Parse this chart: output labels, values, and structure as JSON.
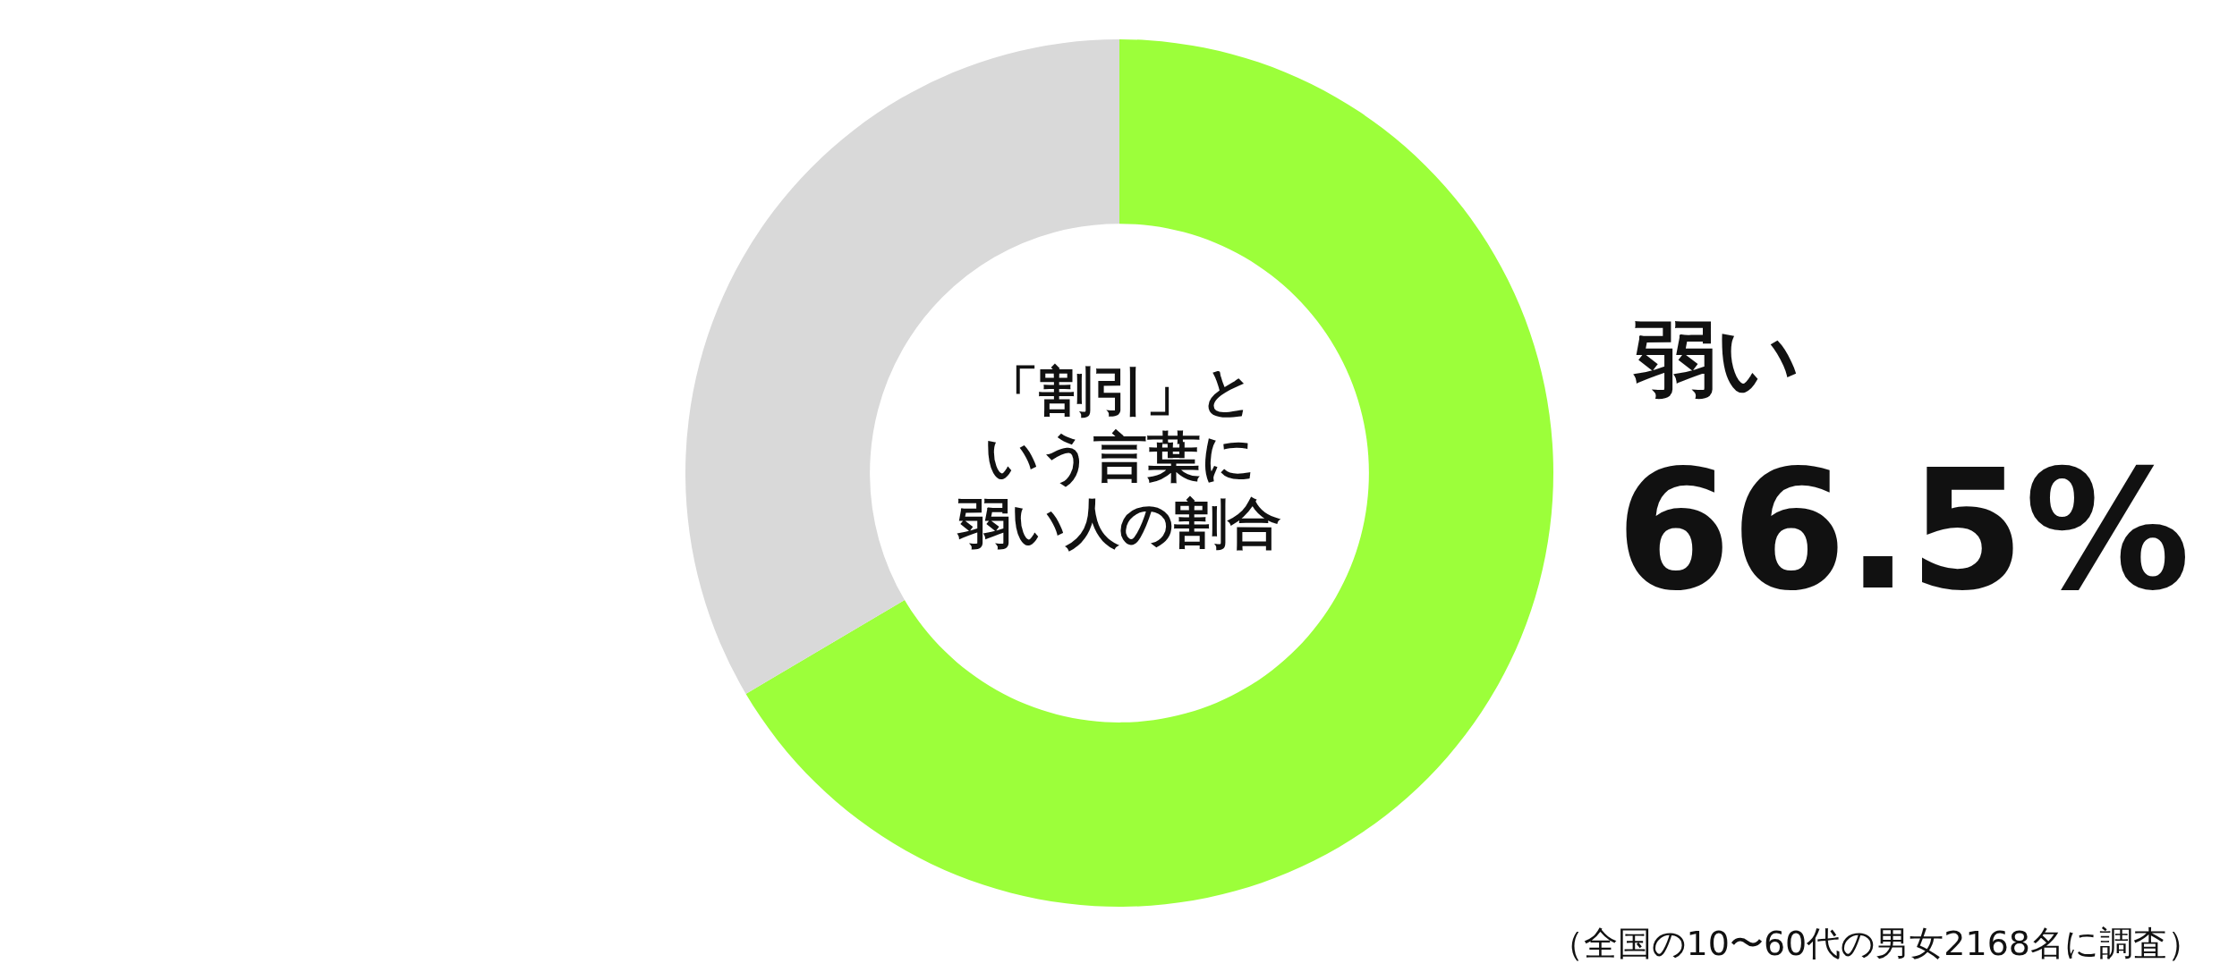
{
  "chart_data": {
    "type": "donut",
    "title": "「割引」という言葉に弱い人の割合",
    "categories": [
      "弱い",
      null
    ],
    "values": [
      66.5,
      33.5
    ],
    "colors": [
      "#9cff3a",
      "#d9d9d9"
    ],
    "value_labels": [
      "66.5%",
      null
    ],
    "legend": false,
    "annotations": [
      "（全国の10〜60代の男女2168名に調査）"
    ]
  }
}
